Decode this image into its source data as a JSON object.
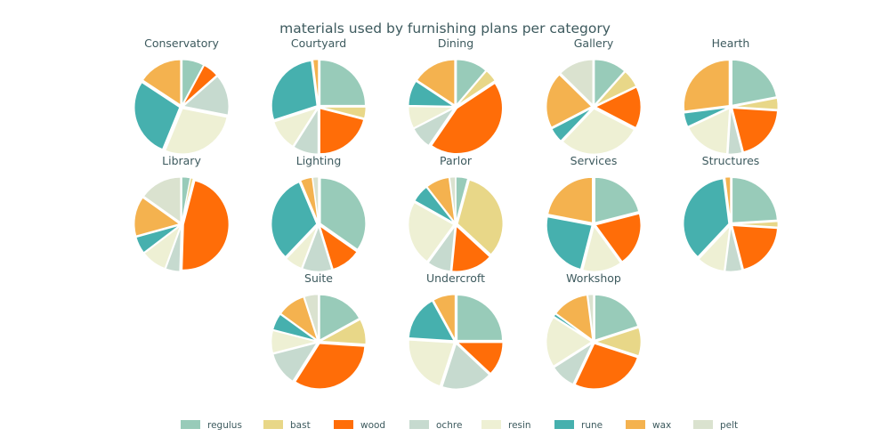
{
  "chart_data": {
    "type": "pie",
    "title": "materials used by furnishing plans per category",
    "legend_position": "bottom",
    "legend": [
      "regulus",
      "bast",
      "wood",
      "ochre",
      "resin",
      "rune",
      "wax",
      "pelt"
    ],
    "colors": {
      "regulus": "#98cbb9",
      "bast": "#e8d788",
      "wood": "#ff6d08",
      "ochre": "#c6dacf",
      "resin": "#eef0d4",
      "rune": "#46b0ae",
      "wax": "#f4b24f",
      "pelt": "#dae2cf"
    },
    "start_angle_deg": 90,
    "direction": "clockwise",
    "pies": [
      {
        "label": "Conservatory",
        "values": {
          "regulus": 7,
          "bast": 0,
          "wood": 5,
          "ochre": 13,
          "resin": 25,
          "rune": 25,
          "wax": 14,
          "pelt": 0
        }
      },
      {
        "label": "Courtyard",
        "values": {
          "regulus": 25,
          "bast": 4,
          "wood": 21,
          "ochre": 9,
          "resin": 11,
          "rune": 28,
          "wax": 2,
          "pelt": 0
        }
      },
      {
        "label": "Dining",
        "values": {
          "regulus": 10,
          "bast": 4,
          "wood": 39,
          "ochre": 7,
          "resin": 7,
          "rune": 8,
          "wax": 14,
          "pelt": 0
        }
      },
      {
        "label": "Gallery",
        "values": {
          "regulus": 11,
          "bast": 6,
          "wood": 14,
          "ochre": 0,
          "resin": 28,
          "rune": 5,
          "wax": 19,
          "pelt": 12
        }
      },
      {
        "label": "Hearth",
        "values": {
          "regulus": 22,
          "bast": 4,
          "wood": 20,
          "ochre": 5,
          "resin": 17,
          "rune": 5,
          "wax": 27,
          "pelt": 0
        }
      },
      {
        "label": "Library",
        "values": {
          "regulus": 3,
          "bast": 1,
          "wood": 46,
          "ochre": 5,
          "resin": 9,
          "rune": 6,
          "wax": 14,
          "pelt": 15
        }
      },
      {
        "label": "Lighting",
        "values": {
          "regulus": 33,
          "bast": 0,
          "wood": 10,
          "ochre": 10,
          "resin": 6,
          "rune": 30,
          "wax": 4,
          "pelt": 2
        }
      },
      {
        "label": "Parlor",
        "values": {
          "regulus": 4,
          "bast": 31,
          "wood": 14,
          "ochre": 8,
          "resin": 22,
          "rune": 6,
          "wax": 8,
          "pelt": 2
        }
      },
      {
        "label": "Services",
        "values": {
          "regulus": 21,
          "bast": 0,
          "wood": 19,
          "ochre": 0,
          "resin": 14,
          "rune": 24,
          "wax": 22,
          "pelt": 0
        }
      },
      {
        "label": "Structures",
        "values": {
          "regulus": 24,
          "bast": 2,
          "wood": 20,
          "ochre": 6,
          "resin": 10,
          "rune": 36,
          "wax": 2,
          "pelt": 0
        }
      },
      {
        "label": "Suite",
        "values": {
          "regulus": 17,
          "bast": 9,
          "wood": 33,
          "ochre": 12,
          "resin": 8,
          "rune": 6,
          "wax": 10,
          "pelt": 5
        }
      },
      {
        "label": "Undercroft",
        "values": {
          "regulus": 25,
          "bast": 0,
          "wood": 12,
          "ochre": 18,
          "resin": 21,
          "rune": 16,
          "wax": 8,
          "pelt": 0
        }
      },
      {
        "label": "Workshop",
        "values": {
          "regulus": 20,
          "bast": 10,
          "wood": 27,
          "ochre": 9,
          "resin": 18,
          "rune": 1,
          "wax": 13,
          "pelt": 2
        }
      }
    ]
  }
}
